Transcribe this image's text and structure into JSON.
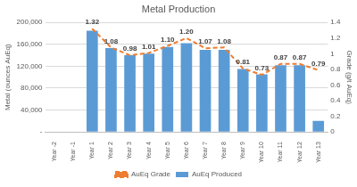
{
  "chart_data": {
    "type": "bar",
    "title": "Metal Production",
    "categories": [
      "Year -2",
      "Year -1",
      "Year 1",
      "Year 2",
      "Year 3",
      "Year 4",
      "Year 5",
      "Year 6",
      "Year 7",
      "Year 8",
      "Year 9",
      "Year 10",
      "Year 11",
      "Year 12",
      "Year 13"
    ],
    "series": [
      {
        "name": "AuEq Produced",
        "type": "bar",
        "color": "#5b9bd5",
        "values": [
          null,
          null,
          185000,
          153000,
          140000,
          143000,
          155000,
          162000,
          150000,
          150000,
          115000,
          105000,
          122000,
          122000,
          20000
        ]
      },
      {
        "name": "AuEq Grade",
        "type": "line",
        "axis": "y2",
        "color": "#ed7d31",
        "line_style": "dashed",
        "marker": "none",
        "data_labels": true,
        "values": [
          null,
          null,
          1.32,
          1.08,
          0.98,
          1.01,
          1.1,
          1.2,
          1.07,
          1.08,
          0.81,
          0.73,
          0.87,
          0.87,
          0.79
        ],
        "value_labels": [
          null,
          null,
          "1.32",
          "1.08",
          "0.98",
          "1.01",
          "1.10",
          "1.20",
          "1.07",
          "1.08",
          "0.81",
          "0.73",
          "0.87",
          "0.87",
          "0.79"
        ]
      }
    ],
    "y_label": "Metal (ounces AuEq)",
    "y2_label": "Grade (g/t AuEq)",
    "ylim": [
      0,
      200000
    ],
    "yticks": [
      {
        "value": 0,
        "label": "-"
      },
      {
        "value": 40000,
        "label": "40,000"
      },
      {
        "value": 80000,
        "label": "80,000"
      },
      {
        "value": 120000,
        "label": "120,000"
      },
      {
        "value": 160000,
        "label": "160,000"
      },
      {
        "value": 200000,
        "label": "200,000"
      }
    ],
    "y2lim": [
      0,
      1.4
    ],
    "y2ticks": [
      0,
      0.2,
      0.4,
      0.6,
      0.8,
      1,
      1.2,
      1.4
    ],
    "grid": true,
    "legend": "bottom"
  }
}
